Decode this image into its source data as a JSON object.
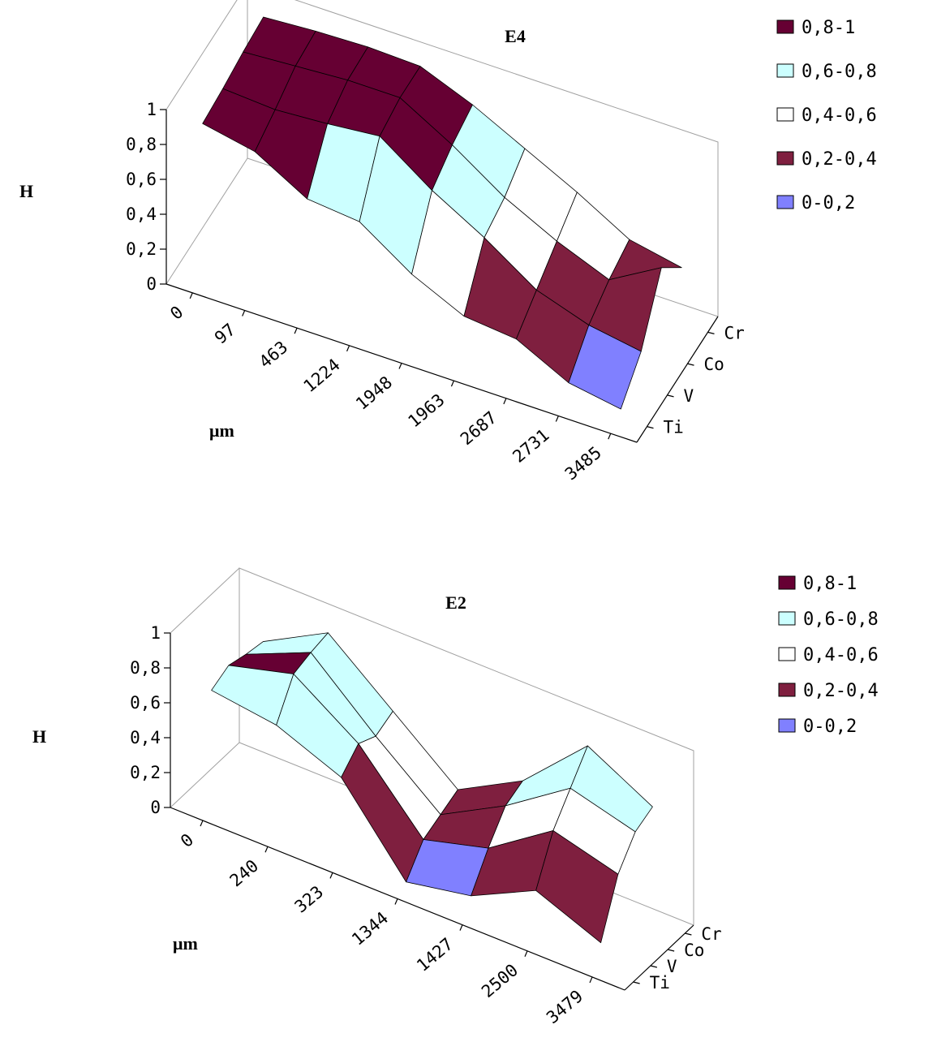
{
  "chart_data": [
    {
      "type": "surface",
      "title": "E4",
      "ylabel": "H",
      "xlabel": "μm",
      "zlim": [
        0,
        1
      ],
      "z_ticks": [
        "0",
        "0,2",
        "0,4",
        "0,6",
        "0,8",
        "1"
      ],
      "x_categories": [
        "0",
        "97",
        "463",
        "1224",
        "1948",
        "1963",
        "2687",
        "2731",
        "3485"
      ],
      "series_axis": [
        "Ti",
        "V",
        "Co",
        "Cr"
      ],
      "values": {
        "Ti": [
          0.88,
          0.82,
          0.65,
          0.62,
          0.42,
          0.28,
          0.25,
          0.1,
          0.05
        ],
        "V": [
          0.9,
          0.88,
          0.9,
          0.93,
          0.72,
          0.55,
          0.35,
          0.25,
          0.2
        ],
        "Co": [
          0.93,
          0.95,
          0.97,
          0.97,
          0.8,
          0.6,
          0.45,
          0.33,
          0.5
        ],
        "Cr": [
          0.95,
          0.97,
          0.98,
          0.97,
          0.85,
          0.7,
          0.55,
          0.38,
          0.32
        ]
      },
      "legend": [
        {
          "label": "0,8-1",
          "color": "#660033"
        },
        {
          "label": "0,6-0,8",
          "color": "#ccffff"
        },
        {
          "label": "0,4-0,6",
          "color": "#ffffff"
        },
        {
          "label": "0,2-0,4",
          "color": "#7f1f3f"
        },
        {
          "label": "0-0,2",
          "color": "#8080ff"
        }
      ],
      "legend_position": "top-right"
    },
    {
      "type": "surface",
      "title": "E2",
      "ylabel": "H",
      "xlabel": "μm",
      "zlim": [
        0,
        1
      ],
      "z_ticks": [
        "0",
        "0,2",
        "0,4",
        "0,6",
        "0,8",
        "1"
      ],
      "x_categories": [
        "0",
        "240",
        "323",
        "1344",
        "1427",
        "2500",
        "3479"
      ],
      "series_axis": [
        "Ti",
        "V",
        "Co",
        "Cr"
      ],
      "values": {
        "Ti": [
          0.7,
          0.65,
          0.5,
          0.05,
          0.12,
          0.3,
          0.15
        ],
        "V": [
          0.75,
          0.85,
          0.6,
          0.2,
          0.3,
          0.55,
          0.45
        ],
        "Co": [
          0.72,
          0.88,
          0.55,
          0.25,
          0.45,
          0.7,
          0.6
        ],
        "Cr": [
          0.7,
          0.9,
          0.6,
          0.3,
          0.5,
          0.85,
          0.65
        ]
      },
      "legend": [
        {
          "label": "0,8-1",
          "color": "#660033"
        },
        {
          "label": "0,6-0,8",
          "color": "#ccffff"
        },
        {
          "label": "0,4-0,6",
          "color": "#ffffff"
        },
        {
          "label": "0,2-0,4",
          "color": "#7f1f3f"
        },
        {
          "label": "0-0,2",
          "color": "#8080ff"
        }
      ],
      "legend_position": "top-right"
    }
  ]
}
